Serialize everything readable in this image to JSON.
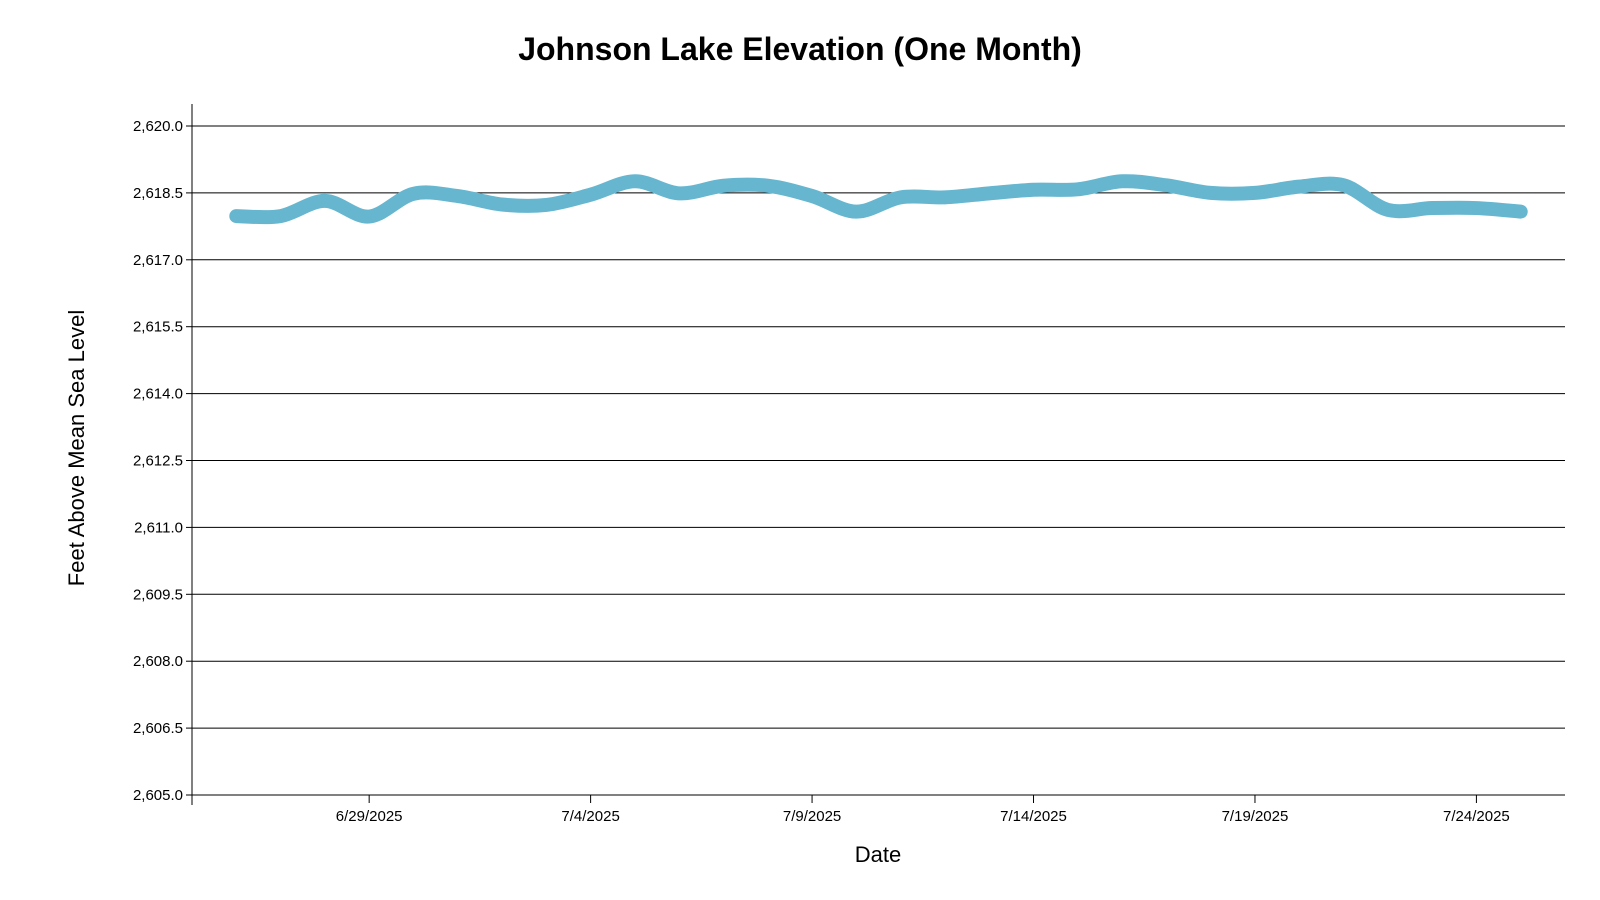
{
  "chart_data": {
    "type": "line",
    "title": "Johnson Lake Elevation (One Month)",
    "xlabel": "Date",
    "ylabel": "Feet Above Mean Sea Level",
    "ylim": [
      2605.0,
      2620.0
    ],
    "xlim": [
      "6/25/2025",
      "7/26/2025"
    ],
    "grid": true,
    "y_ticks": [
      "2,605.0",
      "2,606.5",
      "2,608.0",
      "2,609.5",
      "2,611.0",
      "2,612.5",
      "2,614.0",
      "2,615.5",
      "2,617.0",
      "2,618.5",
      "2,620.0"
    ],
    "x_ticks": [
      "6/29/2025",
      "7/4/2025",
      "7/9/2025",
      "7/14/2025",
      "7/19/2025",
      "7/24/2025"
    ],
    "series": [
      {
        "name": "",
        "color": "#66b6d0",
        "x": [
          "6/26/2025",
          "6/27/2025",
          "6/28/2025",
          "6/29/2025",
          "6/30/2025",
          "7/1/2025",
          "7/2/2025",
          "7/3/2025",
          "7/4/2025",
          "7/5/2025",
          "7/6/2025",
          "7/7/2025",
          "7/8/2025",
          "7/9/2025",
          "7/10/2025",
          "7/11/2025",
          "7/12/2025",
          "7/13/2025",
          "7/14/2025",
          "7/15/2025",
          "7/16/2025",
          "7/17/2025",
          "7/18/2025",
          "7/19/2025",
          "7/20/2025",
          "7/21/2025",
          "7/22/2025",
          "7/23/2025",
          "7/24/2025",
          "7/25/2025"
        ],
        "values": [
          2617.98,
          2617.98,
          2618.32,
          2617.97,
          2618.48,
          2618.43,
          2618.24,
          2618.23,
          2618.46,
          2618.76,
          2618.49,
          2618.66,
          2618.66,
          2618.43,
          2618.08,
          2618.4,
          2618.4,
          2618.49,
          2618.57,
          2618.58,
          2618.76,
          2618.67,
          2618.5,
          2618.5,
          2618.64,
          2618.67,
          2618.12,
          2618.16,
          2618.16,
          2618.08
        ]
      }
    ]
  }
}
